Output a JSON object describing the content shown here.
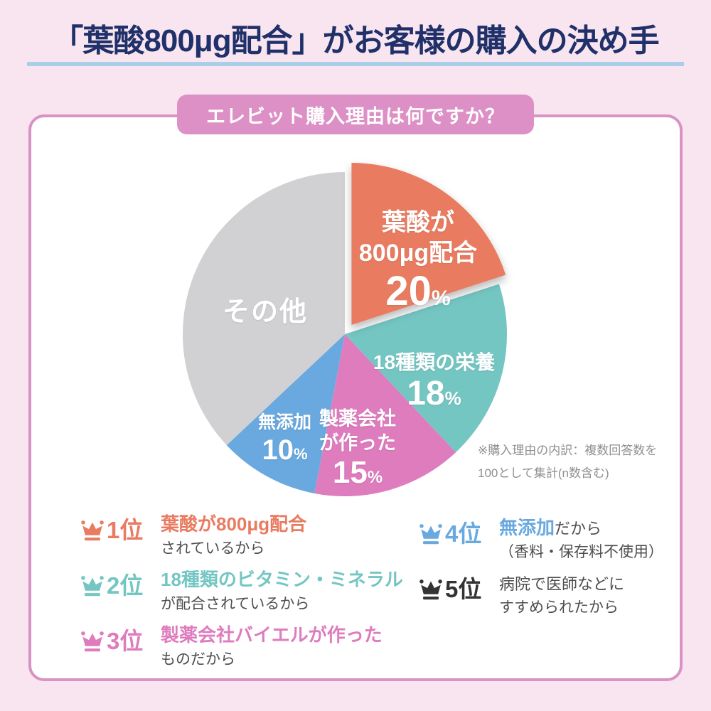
{
  "header": {
    "title": "「葉酸800μg配合」がお客様の購入の決め手"
  },
  "badge": {
    "label": "エレビット購入理由は何ですか？"
  },
  "chart_data": {
    "type": "pie",
    "title": "エレビット購入理由は何ですか？",
    "direction": "clockwise",
    "start_angle_deg": 0,
    "unit": "%",
    "slices": [
      {
        "name": "葉酸が800μg配合",
        "label_lines": [
          "葉酸が",
          "800μg配合"
        ],
        "value": 20,
        "color": "#E97B61",
        "exploded": true
      },
      {
        "name": "18種類の栄養",
        "label_lines": [
          "18種類の栄養"
        ],
        "value": 18,
        "color": "#74C6C3",
        "exploded": false
      },
      {
        "name": "製薬会社が作った",
        "label_lines": [
          "製薬会社",
          "が作った"
        ],
        "value": 15,
        "color": "#DE7CBE",
        "exploded": false
      },
      {
        "name": "無添加",
        "label_lines": [
          "無添加"
        ],
        "value": 10,
        "color": "#69A9DF",
        "exploded": false
      },
      {
        "name": "その他",
        "label_lines": [
          "その他"
        ],
        "value": 37,
        "color": "#D1D1D4",
        "exploded": false,
        "value_shown": false
      }
    ],
    "note": "※購入理由の内訳：複数回答数を100として集計(n数含む)"
  },
  "note": {
    "line1": "※購入理由の内訳：複数回答数を",
    "line2": "100として集計(n数含む)"
  },
  "rankings": [
    {
      "rank": "1位",
      "highlight": "葉酸が800μg配合",
      "rest": "",
      "line2": "されているから",
      "color": "#E97B61"
    },
    {
      "rank": "2位",
      "highlight": "18種類のビタミン・ミネラル",
      "rest": "",
      "line2": "が配合されているから",
      "color": "#74C6C3"
    },
    {
      "rank": "3位",
      "highlight": "製薬会社バイエルが作った",
      "rest": "",
      "line2": "ものだから",
      "color": "#DE7CBE"
    },
    {
      "rank": "4位",
      "highlight": "無添加",
      "rest": "だから",
      "line2": "（香料・保存料不使用）",
      "color": "#69A9DF"
    },
    {
      "rank": "5位",
      "highlight": "",
      "rest": "病院で医師などに",
      "line2": "すすめられたから",
      "color": "#333333"
    }
  ],
  "colors": {
    "background": "#F8E5F0",
    "title_text": "#203069",
    "title_underline": "#A9CEE7",
    "card_border": "#D892C4",
    "badge_background": "#DC90C5",
    "note_text": "#8F8F8F",
    "body_text": "#4E4E4E"
  }
}
